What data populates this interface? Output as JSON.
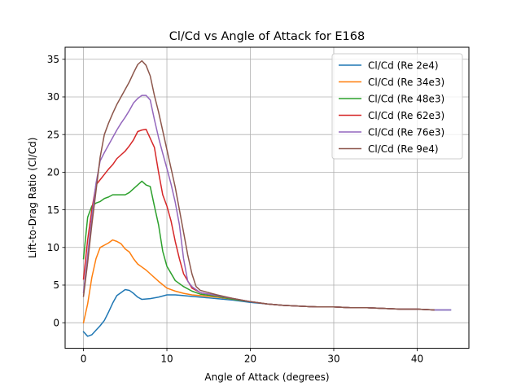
{
  "chart_data": {
    "type": "line",
    "title": "Cl/Cd vs Angle of Attack for E168",
    "xlabel": "Angle of Attack (degrees)",
    "ylabel": "Lift-to-Drag Ratio (Cl/Cd)",
    "xlim": [
      -2.2,
      46.2
    ],
    "ylim": [
      -3.4,
      36.6
    ],
    "xticks": [
      0,
      10,
      20,
      30,
      40
    ],
    "yticks": [
      0,
      5,
      10,
      15,
      20,
      25,
      30,
      35
    ],
    "grid": true,
    "legend_position": "top-right",
    "series": [
      {
        "name": "Cl/Cd (Re 2e4)",
        "color": "#1f77b4",
        "x": [
          0,
          0.5,
          1,
          1.5,
          2,
          2.5,
          3,
          3.5,
          4,
          4.5,
          5,
          5.5,
          6,
          6.5,
          7,
          8,
          9,
          10,
          11,
          12,
          13,
          14,
          15,
          16,
          18,
          20,
          22,
          24,
          26,
          28,
          30,
          32,
          34,
          36,
          38,
          40,
          42,
          44
        ],
        "y": [
          -1.2,
          -1.8,
          -1.6,
          -1.0,
          -0.4,
          0.3,
          1.4,
          2.6,
          3.6,
          4.0,
          4.4,
          4.3,
          3.9,
          3.4,
          3.1,
          3.2,
          3.4,
          3.7,
          3.7,
          3.6,
          3.5,
          3.4,
          3.3,
          3.2,
          3.0,
          2.7,
          2.5,
          2.3,
          2.2,
          2.1,
          2.1,
          2.0,
          2.0,
          1.9,
          1.8,
          1.8,
          1.7,
          1.7
        ]
      },
      {
        "name": "Cl/Cd (Re 34e3)",
        "color": "#ff7f0e",
        "x": [
          0,
          0.5,
          1,
          1.5,
          2,
          2.5,
          3,
          3.5,
          4,
          4.5,
          5,
          5.5,
          6,
          6.5,
          7,
          7.5,
          8,
          9,
          10,
          11,
          12,
          13,
          14,
          16,
          18,
          20,
          22,
          24,
          26,
          28,
          30,
          32,
          34,
          36,
          38,
          40,
          42
        ],
        "y": [
          0,
          2.5,
          6.0,
          8.5,
          10.0,
          10.3,
          10.6,
          11.0,
          10.8,
          10.5,
          9.8,
          9.4,
          8.5,
          7.8,
          7.4,
          7.0,
          6.5,
          5.5,
          4.6,
          4.2,
          3.9,
          3.7,
          3.6,
          3.4,
          3.1,
          2.8,
          2.5,
          2.3,
          2.2,
          2.1,
          2.1,
          2.0,
          2.0,
          1.9,
          1.8,
          1.8,
          1.7
        ]
      },
      {
        "name": "Cl/Cd (Re 48e3)",
        "color": "#2ca02c",
        "x": [
          0,
          0.5,
          1,
          1.5,
          2,
          2.5,
          3,
          3.5,
          4,
          4.5,
          5,
          5.5,
          6,
          6.5,
          7,
          7.5,
          8,
          8.5,
          9,
          9.5,
          10,
          11,
          12,
          13,
          14,
          16,
          18,
          20,
          22,
          24,
          26,
          28,
          30,
          32,
          34,
          36,
          38,
          40,
          42
        ],
        "y": [
          8.5,
          14.0,
          15.5,
          15.9,
          16.1,
          16.5,
          16.7,
          17.0,
          17.0,
          17.0,
          17.0,
          17.3,
          17.8,
          18.3,
          18.8,
          18.3,
          18.1,
          15.5,
          13.0,
          9.5,
          7.5,
          5.6,
          4.8,
          4.2,
          3.8,
          3.5,
          3.1,
          2.8,
          2.5,
          2.3,
          2.2,
          2.1,
          2.1,
          2.0,
          2.0,
          1.9,
          1.8,
          1.8,
          1.7
        ]
      },
      {
        "name": "Cl/Cd (Re 62e3)",
        "color": "#d62728",
        "x": [
          0,
          0.5,
          1,
          1.5,
          2,
          2.5,
          3,
          3.5,
          4,
          4.5,
          5,
          5.5,
          6,
          6.5,
          7,
          7.5,
          8,
          8.5,
          9,
          9.5,
          10,
          10.5,
          11,
          11.5,
          12,
          13,
          14,
          16,
          18,
          20,
          22,
          24,
          26,
          28,
          30,
          32,
          34,
          36,
          38,
          40,
          42
        ],
        "y": [
          5.8,
          11.0,
          15.0,
          18.3,
          19.0,
          19.7,
          20.4,
          21.0,
          21.8,
          22.3,
          22.8,
          23.5,
          24.3,
          25.4,
          25.6,
          25.7,
          24.5,
          23.3,
          20.0,
          17.0,
          15.5,
          13.5,
          10.8,
          8.5,
          6.5,
          4.6,
          4.0,
          3.6,
          3.2,
          2.8,
          2.5,
          2.3,
          2.2,
          2.1,
          2.1,
          2.0,
          2.0,
          1.9,
          1.8,
          1.8,
          1.7
        ]
      },
      {
        "name": "Cl/Cd (Re 76e3)",
        "color": "#9467bd",
        "x": [
          0,
          0.5,
          1,
          1.5,
          2,
          2.5,
          3,
          3.5,
          4,
          4.5,
          5,
          5.5,
          6,
          6.5,
          7,
          7.5,
          8,
          8.5,
          9,
          9.5,
          10,
          10.5,
          11,
          11.5,
          12,
          12.5,
          13,
          14,
          16,
          18,
          20,
          22,
          24,
          26,
          28,
          30,
          32,
          34,
          36,
          38,
          40,
          42,
          44
        ],
        "y": [
          4.0,
          9.0,
          14.0,
          18.5,
          21.5,
          22.6,
          23.6,
          24.6,
          25.6,
          26.5,
          27.3,
          28.2,
          29.2,
          29.8,
          30.2,
          30.2,
          29.6,
          27.0,
          24.6,
          22.5,
          20.5,
          18.4,
          16.0,
          13.0,
          8.5,
          5.5,
          4.8,
          4.0,
          3.6,
          3.2,
          2.8,
          2.5,
          2.3,
          2.2,
          2.1,
          2.1,
          2.0,
          2.0,
          1.9,
          1.8,
          1.8,
          1.7,
          1.7
        ]
      },
      {
        "name": "Cl/Cd (Re 9e4)",
        "color": "#8c564b",
        "x": [
          0,
          0.5,
          1,
          1.5,
          2,
          2.5,
          3,
          3.5,
          4,
          4.5,
          5,
          5.5,
          6,
          6.5,
          7,
          7.5,
          8,
          8.5,
          9,
          9.5,
          10,
          10.5,
          11,
          11.5,
          12,
          12.5,
          13,
          13.5,
          14,
          16,
          18,
          20,
          22,
          24,
          26,
          28,
          30,
          32,
          34,
          36,
          38,
          40,
          42
        ],
        "y": [
          3.5,
          8.0,
          13.0,
          17.5,
          22.0,
          25.0,
          26.5,
          27.8,
          29.0,
          30.0,
          31.0,
          32.0,
          33.2,
          34.3,
          34.8,
          34.2,
          32.8,
          30.2,
          28.0,
          25.5,
          23.0,
          20.5,
          18.0,
          15.0,
          12.0,
          9.0,
          6.5,
          4.8,
          4.3,
          3.7,
          3.2,
          2.8,
          2.5,
          2.3,
          2.2,
          2.1,
          2.1,
          2.0,
          2.0,
          1.9,
          1.8,
          1.8,
          1.7
        ]
      }
    ]
  }
}
